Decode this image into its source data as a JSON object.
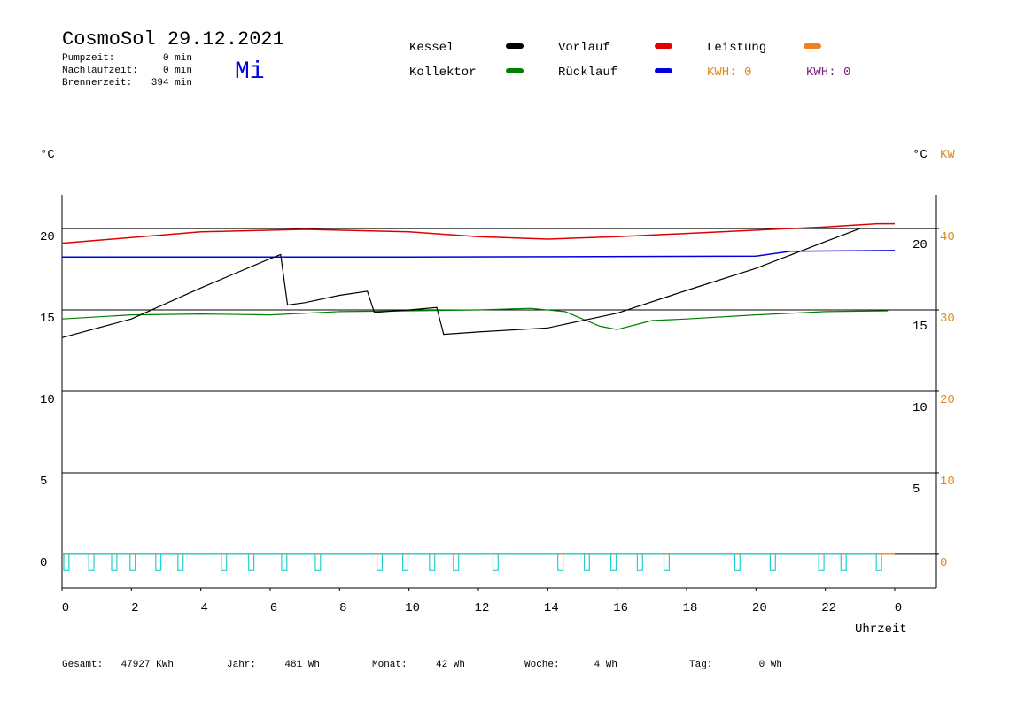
{
  "chart_data": {
    "type": "line",
    "title": "CosmoSol 29.12.2021",
    "weekday": "Mi",
    "info": [
      [
        "Pumpzeit:",
        "0 min"
      ],
      [
        "Nachlaufzeit:",
        "0 min"
      ],
      [
        "Brennerzeit:",
        "394 min"
      ]
    ],
    "kwh_labels": [
      {
        "text": "KWH: 0",
        "color": "#e08a1e"
      },
      {
        "text": "KWH: 0",
        "color": "#802080"
      }
    ],
    "ylabel": "°C",
    "y3label": "°C",
    "y2label": "KW",
    "xlabel": "Uhrzeit",
    "xlim": [
      0,
      25.2
    ],
    "xticks": [
      0,
      2,
      4,
      6,
      8,
      10,
      12,
      14,
      16,
      18,
      20,
      22,
      {
        "value": 24,
        "label": "0"
      }
    ],
    "ylim": [
      -2.07,
      22.07
    ],
    "yticks": [
      0,
      5,
      10,
      15,
      20
    ],
    "y3ticks": [
      5,
      10,
      15,
      20
    ],
    "y2lim": [
      -4.14,
      44.14
    ],
    "y2ticks": [
      0,
      10,
      20,
      30,
      40
    ],
    "grid": true,
    "series": [
      {
        "name": "Kessel",
        "color": "#000000",
        "x": [
          0,
          2,
          4,
          6,
          6.3,
          6.5,
          7,
          8,
          8.8,
          9,
          10,
          10.8,
          11,
          12,
          14,
          16,
          18,
          20,
          22,
          23
        ],
        "values": [
          13.3,
          14.45,
          16.35,
          18.15,
          18.4,
          15.3,
          15.45,
          15.9,
          16.15,
          14.85,
          15,
          15.15,
          13.5,
          13.65,
          13.9,
          14.8,
          16.2,
          17.55,
          19.2,
          20
        ]
      },
      {
        "name": "Kollektor",
        "color": "#008000",
        "x": [
          0,
          2,
          4,
          6,
          8,
          10,
          12,
          13.5,
          14.5,
          15.5,
          16,
          17,
          18,
          20,
          22,
          23.8
        ],
        "values": [
          14.45,
          14.7,
          14.75,
          14.7,
          14.9,
          14.95,
          15,
          15.1,
          14.9,
          14,
          13.8,
          14.35,
          14.45,
          14.7,
          14.9,
          14.95
        ]
      },
      {
        "name": "Vorlauf",
        "color": "#e00000",
        "x": [
          0,
          4,
          7,
          10,
          12,
          14,
          16,
          18,
          20,
          22,
          23.5,
          24
        ],
        "values": [
          19.1,
          19.8,
          19.95,
          19.8,
          19.5,
          19.35,
          19.5,
          19.7,
          19.9,
          20.1,
          20.3,
          20.3
        ]
      },
      {
        "name": "Rücklauf",
        "color": "#0000e0",
        "x": [
          0,
          10,
          20,
          21,
          24
        ],
        "values": [
          18.25,
          18.25,
          18.3,
          18.6,
          18.65
        ]
      },
      {
        "name": "Leistung",
        "color": "#f08020",
        "axis": "y2",
        "x": [
          0,
          24
        ],
        "values": [
          0,
          0
        ]
      },
      {
        "color": "#20d0d0",
        "x": [
          0.05,
          0.05,
          0.2,
          0.2,
          0.77,
          0.77,
          0.92,
          0.92,
          1.43,
          1.43,
          1.58,
          1.58,
          1.96,
          1.96,
          2.11,
          2.11,
          2.7,
          2.7,
          2.85,
          2.85,
          3.34,
          3.34,
          3.49,
          3.49,
          4.59,
          4.59,
          4.74,
          4.74,
          5.38,
          5.38,
          5.53,
          5.53,
          6.33,
          6.33,
          6.48,
          6.48,
          7.3,
          7.3,
          7.45,
          7.45,
          9.08,
          9.08,
          9.23,
          9.23,
          9.82,
          9.82,
          9.97,
          9.97,
          10.59,
          10.59,
          10.74,
          10.74,
          11.28,
          11.28,
          11.43,
          11.43,
          12.42,
          12.42,
          12.57,
          12.57,
          14.29,
          14.29,
          14.44,
          14.44,
          15.05,
          15.05,
          15.2,
          15.2,
          15.82,
          15.82,
          15.97,
          15.97,
          16.58,
          16.58,
          16.73,
          16.73,
          17.35,
          17.35,
          17.5,
          17.5,
          19.39,
          19.39,
          19.54,
          19.54,
          20.41,
          20.41,
          20.56,
          20.56,
          21.81,
          21.81,
          21.96,
          21.96,
          22.45,
          22.45,
          22.6,
          22.6,
          23.47,
          23.47,
          23.62,
          23.62
        ],
        "values": [
          0,
          -1,
          -1,
          0,
          0,
          -1,
          -1,
          0,
          0,
          -1,
          -1,
          0,
          0,
          -1,
          -1,
          0,
          0,
          -1,
          -1,
          0,
          0,
          -1,
          -1,
          0,
          0,
          -1,
          -1,
          0,
          0,
          -1,
          -1,
          0,
          0,
          -1,
          -1,
          0,
          0,
          -1,
          -1,
          0,
          0,
          -1,
          -1,
          0,
          0,
          -1,
          -1,
          0,
          0,
          -1,
          -1,
          0,
          0,
          -1,
          -1,
          0,
          0,
          -1,
          -1,
          0,
          0,
          -1,
          -1,
          0,
          0,
          -1,
          -1,
          0,
          0,
          -1,
          -1,
          0,
          0,
          -1,
          -1,
          0,
          0,
          -1,
          -1,
          0,
          0,
          -1,
          -1,
          0,
          0,
          -1,
          -1,
          0,
          0,
          -1,
          -1,
          0,
          0,
          -1,
          -1,
          0,
          0,
          -1,
          -1,
          0
        ]
      }
    ],
    "footer": [
      [
        "Gesamt:",
        "47927 KWh"
      ],
      [
        "Jahr:",
        "481 Wh"
      ],
      [
        "Monat:",
        "42 Wh"
      ],
      [
        "Woche:",
        "4 Wh"
      ],
      [
        "Tag:",
        "0 Wh"
      ]
    ]
  }
}
